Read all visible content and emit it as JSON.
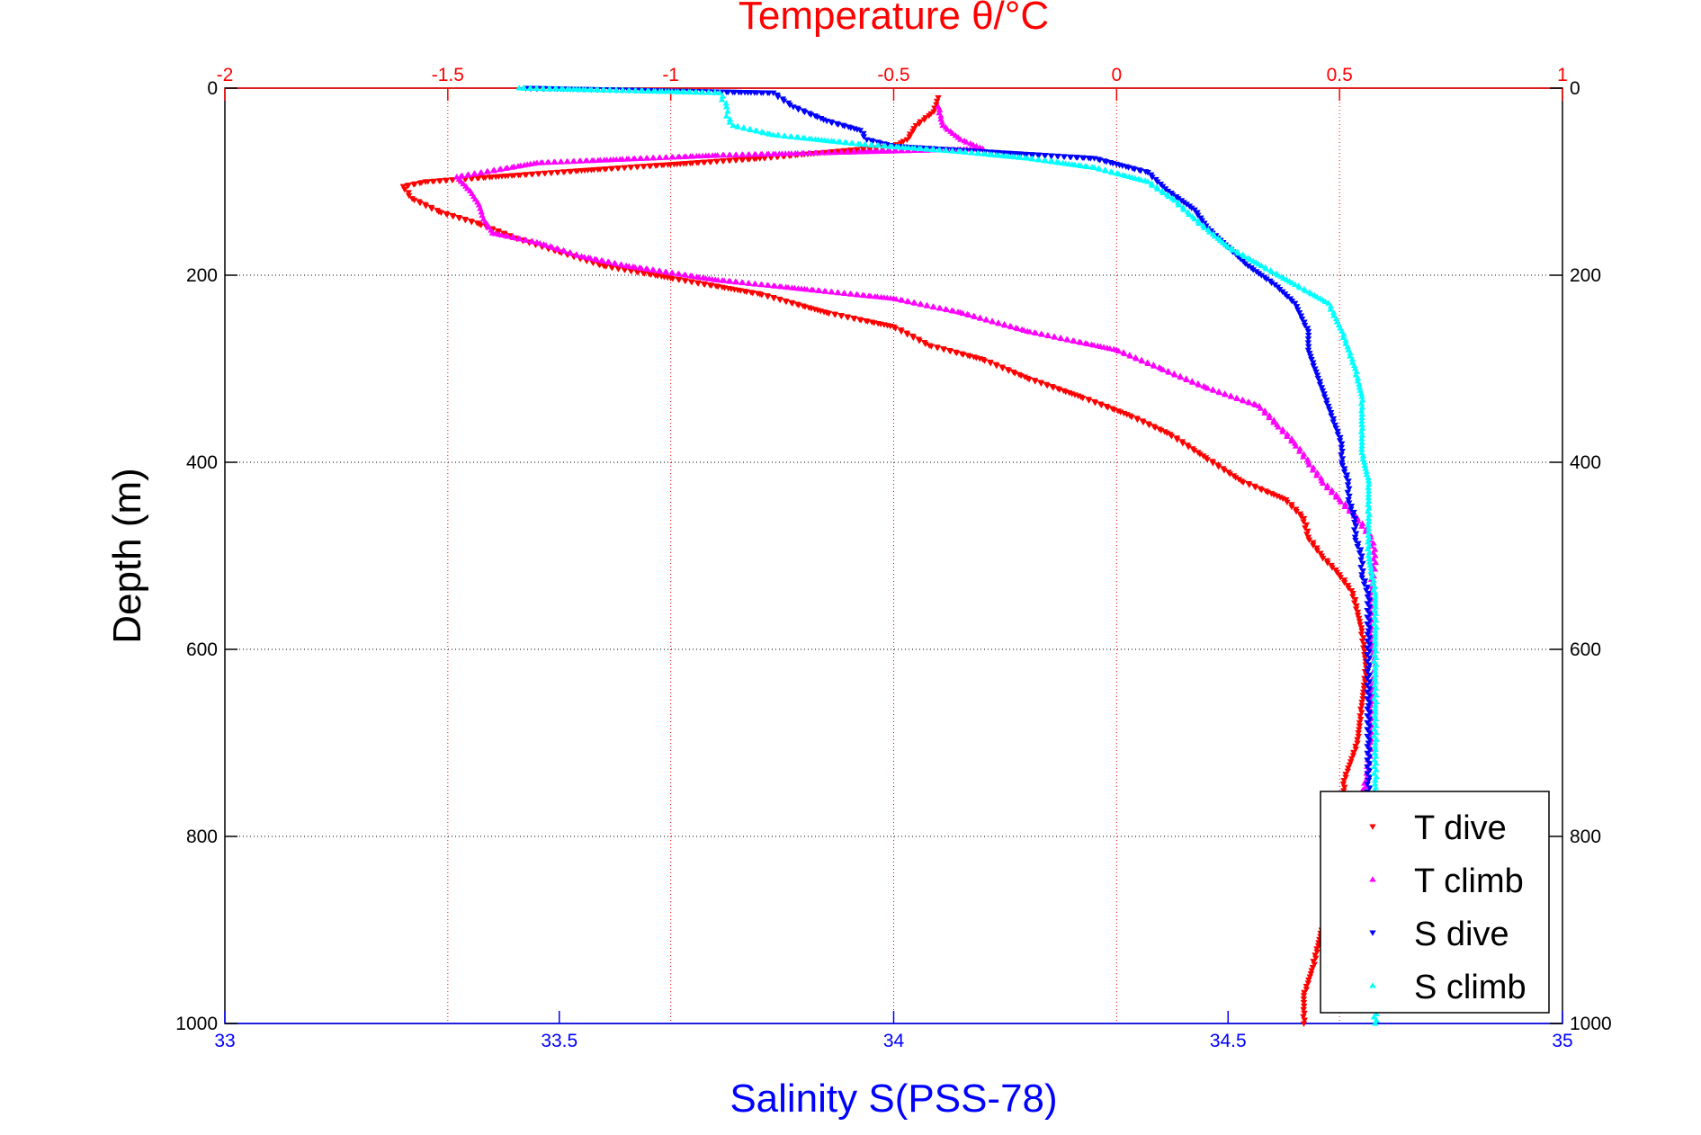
{
  "chart_data": {
    "type": "scatter",
    "title": "Temperature θ/°C",
    "xlabel": "Salinity S(PSS-78)",
    "ylabel": "Depth (m)",
    "x_top": {
      "label": "Temperature θ/°C",
      "lim": [
        -2,
        1
      ],
      "ticks": [
        -2,
        -1.5,
        -1,
        -0.5,
        0,
        0.5,
        1
      ],
      "tick_labels": [
        "-2",
        "-1.5",
        "-1",
        "-0.5",
        "0",
        "0.5",
        "1"
      ],
      "color": "#ff0000"
    },
    "x_bottom": {
      "label": "Salinity S(PSS-78)",
      "lim": [
        33,
        35
      ],
      "ticks": [
        33,
        33.5,
        34,
        34.5,
        35
      ],
      "tick_labels": [
        "33",
        "33.5",
        "34",
        "34.5",
        "35"
      ],
      "color": "#0000ff"
    },
    "y": {
      "label": "Depth (m)",
      "lim": [
        0,
        1000
      ],
      "reversed": true,
      "ticks": [
        0,
        200,
        400,
        600,
        800,
        1000
      ],
      "tick_labels": [
        "0",
        "200",
        "400",
        "600",
        "800",
        "1000"
      ]
    },
    "grid": true,
    "legend_position": "bottom-right",
    "series": [
      {
        "name": "T dive",
        "axis": "temperature",
        "color": "#ff0000",
        "marker": "triangle-down",
        "points": [
          [
            -0.4,
            10
          ],
          [
            -0.41,
            25
          ],
          [
            -0.45,
            40
          ],
          [
            -0.47,
            55
          ],
          [
            -0.5,
            62
          ],
          [
            -0.8,
            75
          ],
          [
            -1.2,
            88
          ],
          [
            -1.55,
            100
          ],
          [
            -1.6,
            105
          ],
          [
            -1.58,
            118
          ],
          [
            -1.52,
            132
          ],
          [
            -1.43,
            145
          ],
          [
            -1.35,
            160
          ],
          [
            -1.25,
            175
          ],
          [
            -1.15,
            190
          ],
          [
            -1.0,
            203
          ],
          [
            -0.8,
            220
          ],
          [
            -0.65,
            240
          ],
          [
            -0.5,
            255
          ],
          [
            -0.42,
            275
          ],
          [
            -0.3,
            290
          ],
          [
            -0.2,
            310
          ],
          [
            -0.08,
            330
          ],
          [
            0.03,
            350
          ],
          [
            0.12,
            370
          ],
          [
            0.2,
            395
          ],
          [
            0.28,
            420
          ],
          [
            0.38,
            440
          ],
          [
            0.42,
            460
          ],
          [
            0.43,
            480
          ],
          [
            0.46,
            500
          ],
          [
            0.5,
            520
          ],
          [
            0.53,
            540
          ],
          [
            0.55,
            580
          ],
          [
            0.56,
            620
          ],
          [
            0.55,
            660
          ],
          [
            0.54,
            700
          ],
          [
            0.51,
            740
          ],
          [
            0.51,
            780
          ],
          [
            0.51,
            820
          ],
          [
            0.49,
            860
          ],
          [
            0.46,
            900
          ],
          [
            0.44,
            940
          ],
          [
            0.42,
            970
          ],
          [
            0.42,
            1000
          ]
        ]
      },
      {
        "name": "T climb",
        "axis": "temperature",
        "color": "#ff00ff",
        "marker": "triangle-up",
        "points": [
          [
            -0.4,
            20
          ],
          [
            -0.39,
            40
          ],
          [
            -0.35,
            55
          ],
          [
            -0.3,
            65
          ],
          [
            -0.9,
            72
          ],
          [
            -1.3,
            80
          ],
          [
            -1.48,
            95
          ],
          [
            -1.45,
            110
          ],
          [
            -1.43,
            125
          ],
          [
            -1.42,
            140
          ],
          [
            -1.4,
            155
          ],
          [
            -1.3,
            165
          ],
          [
            -1.2,
            180
          ],
          [
            -1.1,
            190
          ],
          [
            -0.9,
            205
          ],
          [
            -0.7,
            215
          ],
          [
            -0.5,
            225
          ],
          [
            -0.35,
            240
          ],
          [
            -0.2,
            260
          ],
          [
            0.0,
            280
          ],
          [
            0.1,
            300
          ],
          [
            0.2,
            320
          ],
          [
            0.32,
            340
          ],
          [
            0.36,
            360
          ],
          [
            0.4,
            380
          ],
          [
            0.43,
            400
          ],
          [
            0.46,
            420
          ],
          [
            0.5,
            440
          ],
          [
            0.54,
            460
          ],
          [
            0.57,
            480
          ],
          [
            0.58,
            500
          ],
          [
            0.57,
            540
          ],
          [
            0.57,
            580
          ],
          [
            0.58,
            620
          ],
          [
            0.57,
            660
          ],
          [
            0.57,
            700
          ],
          [
            0.56,
            740
          ],
          [
            0.55,
            760
          ]
        ]
      },
      {
        "name": "S dive",
        "axis": "salinity",
        "color": "#0000ff",
        "marker": "triangle-down",
        "points": [
          [
            33.45,
            0
          ],
          [
            33.82,
            5
          ],
          [
            33.85,
            20
          ],
          [
            33.9,
            35
          ],
          [
            33.95,
            45
          ],
          [
            33.96,
            55
          ],
          [
            34.0,
            62
          ],
          [
            34.3,
            75
          ],
          [
            34.38,
            90
          ],
          [
            34.41,
            110
          ],
          [
            34.45,
            130
          ],
          [
            34.47,
            150
          ],
          [
            34.5,
            170
          ],
          [
            34.53,
            190
          ],
          [
            34.57,
            210
          ],
          [
            34.6,
            230
          ],
          [
            34.62,
            260
          ],
          [
            34.62,
            280
          ],
          [
            34.63,
            300
          ],
          [
            34.64,
            320
          ],
          [
            34.65,
            340
          ],
          [
            34.66,
            360
          ],
          [
            34.67,
            380
          ],
          [
            34.67,
            400
          ],
          [
            34.68,
            420
          ],
          [
            34.68,
            440
          ],
          [
            34.69,
            460
          ],
          [
            34.69,
            480
          ],
          [
            34.7,
            500
          ],
          [
            34.7,
            520
          ],
          [
            34.71,
            540
          ],
          [
            34.71,
            580
          ],
          [
            34.71,
            620
          ],
          [
            34.71,
            660
          ],
          [
            34.71,
            700
          ],
          [
            34.71,
            740
          ],
          [
            34.71,
            760
          ]
        ]
      },
      {
        "name": "S climb",
        "axis": "salinity",
        "color": "#00ffff",
        "marker": "triangle-up",
        "points": [
          [
            33.44,
            0
          ],
          [
            33.74,
            5
          ],
          [
            33.75,
            20
          ],
          [
            33.75,
            30
          ],
          [
            33.76,
            40
          ],
          [
            33.82,
            50
          ],
          [
            33.95,
            60
          ],
          [
            34.1,
            68
          ],
          [
            34.2,
            75
          ],
          [
            34.3,
            85
          ],
          [
            34.38,
            100
          ],
          [
            34.42,
            120
          ],
          [
            34.45,
            140
          ],
          [
            34.5,
            170
          ],
          [
            34.55,
            190
          ],
          [
            34.6,
            210
          ],
          [
            34.65,
            230
          ],
          [
            34.67,
            260
          ],
          [
            34.68,
            280
          ],
          [
            34.69,
            300
          ],
          [
            34.7,
            330
          ],
          [
            34.7,
            360
          ],
          [
            34.7,
            390
          ],
          [
            34.71,
            420
          ],
          [
            34.71,
            460
          ],
          [
            34.71,
            500
          ],
          [
            34.72,
            540
          ],
          [
            34.72,
            580
          ],
          [
            34.72,
            620
          ],
          [
            34.72,
            660
          ],
          [
            34.72,
            700
          ],
          [
            34.72,
            740
          ],
          [
            34.72,
            760
          ],
          [
            34.72,
            1000
          ]
        ]
      }
    ]
  }
}
